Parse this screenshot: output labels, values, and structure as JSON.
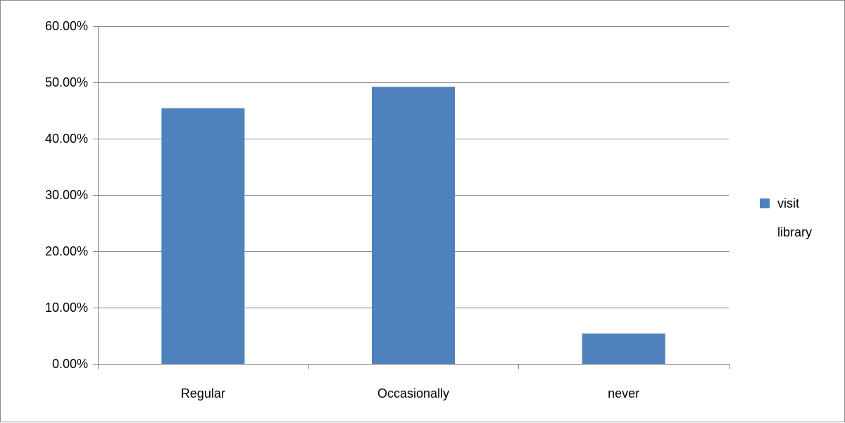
{
  "chart_data": {
    "type": "bar",
    "categories": [
      "Regular",
      "Occasionally",
      "never"
    ],
    "series": [
      {
        "name": "visit library",
        "values": [
          0.454,
          0.492,
          0.054
        ]
      }
    ],
    "ylim": [
      0,
      0.6
    ],
    "y_ticks": [
      0,
      0.1,
      0.2,
      0.3,
      0.4,
      0.5,
      0.6
    ],
    "y_tick_labels": [
      "0.00%",
      "10.00%",
      "20.00%",
      "30.00%",
      "40.00%",
      "50.00%",
      "60.00%"
    ],
    "grid": true,
    "legend_position": "right",
    "legend_lines": [
      "visit",
      "library"
    ],
    "colors": {
      "bar": "#4f81bd",
      "grid": "#868686",
      "axis": "#868686",
      "frame": "#8c8c8c"
    }
  }
}
